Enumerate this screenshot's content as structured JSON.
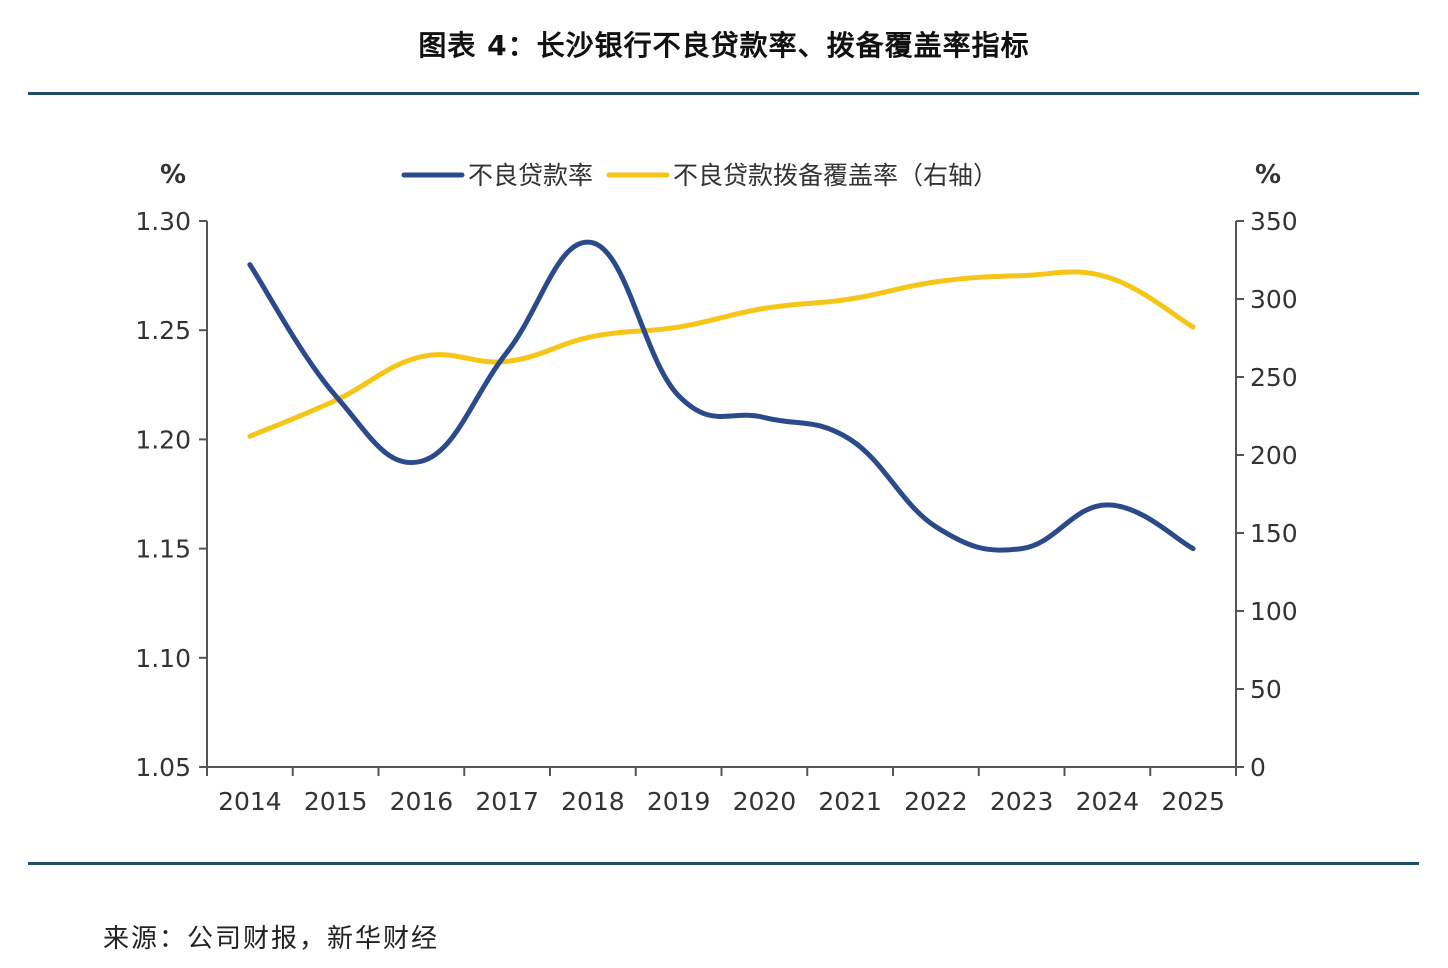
{
  "figure": {
    "title": "图表 4：长沙银行不良贷款率、拨备覆盖率指标",
    "source": "来源：公司财报，新华财经"
  },
  "chart_data": {
    "type": "line",
    "categories": [
      "2014",
      "2015",
      "2016",
      "2017",
      "2018",
      "2019",
      "2020",
      "2021",
      "2022",
      "2023",
      "2024",
      "2025"
    ],
    "y_left": {
      "unit": "%",
      "min": 1.05,
      "max": 1.3,
      "ticks": [
        "1.30",
        "1.25",
        "1.20",
        "1.15",
        "1.10",
        "1.05"
      ]
    },
    "y_right": {
      "unit": "%",
      "min": 0,
      "max": 350,
      "ticks": [
        "350",
        "300",
        "250",
        "200",
        "150",
        "100",
        "50",
        "0"
      ]
    },
    "series": [
      {
        "name": "不良贷款率",
        "axis": "left",
        "color": "#2b4a8b",
        "values": [
          1.28,
          1.22,
          1.19,
          1.24,
          1.29,
          1.22,
          1.21,
          1.2,
          1.16,
          1.15,
          1.17,
          1.15
        ]
      },
      {
        "name": "不良贷款拨备覆盖率（右轴）",
        "axis": "right",
        "color": "#f5c518",
        "values": [
          212,
          235,
          263,
          260,
          276,
          282,
          294,
          300,
          311,
          315,
          314,
          282
        ]
      }
    ],
    "legend_position": "top-center",
    "grid": false
  }
}
